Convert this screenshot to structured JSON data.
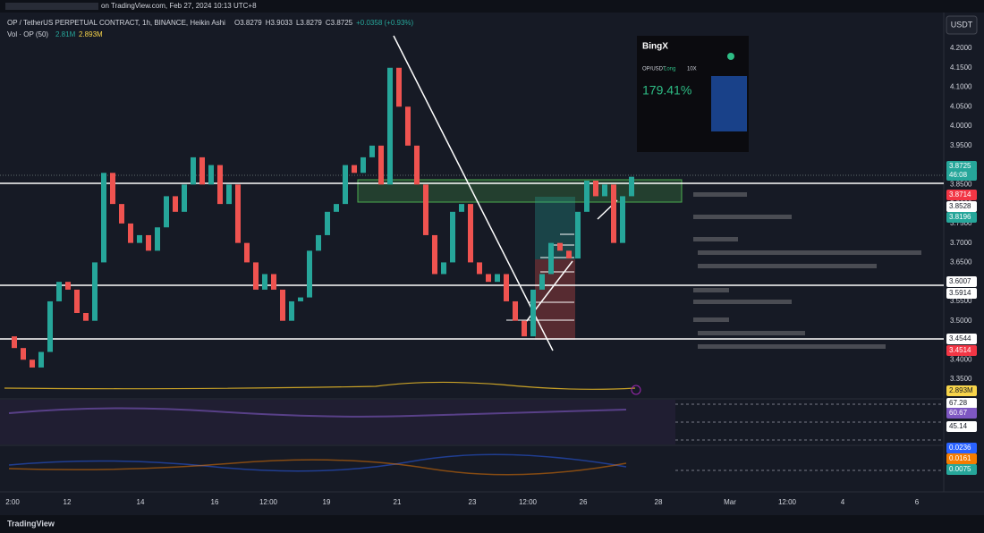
{
  "top_bar": {
    "source": "on TradingView.com, Feb 27, 2024 10:13 UTC+8",
    "currency": "USDT"
  },
  "legend": {
    "symbol": "OP / TetherUS PERPETUAL CONTRACT, 1h, BINANCE, Heikin Ashi",
    "ohlc": [
      "O3.8279",
      "H3.9033",
      "L3.8279",
      "C3.8725",
      "+0.0358 (+0.93%)"
    ],
    "volume_title": "Vol · OP (50)",
    "volume_values": [
      "2.81M",
      "2.893M"
    ]
  },
  "card": {
    "brand": "BingX",
    "pair": "OP/USDT",
    "side": "Long",
    "leverage": "10X",
    "pnl": "179.41%"
  },
  "chart": {
    "price_scale": [
      "4.2000",
      "4.1500",
      "4.1000",
      "4.0500",
      "4.0000",
      "3.9500",
      "3.9000",
      "3.8500",
      "3.8000",
      "3.7500",
      "3.7000",
      "3.6500",
      "3.6000",
      "3.5500",
      "3.5000",
      "3.4500",
      "3.4000",
      "3.3500"
    ],
    "time_scale": [
      "2:00",
      "12",
      "14",
      "16",
      "12:00",
      "19",
      "21",
      "23",
      "12:00",
      "26",
      "28",
      "Mar",
      "12:00",
      "4",
      "6"
    ],
    "closes": [
      3.46,
      3.43,
      3.4,
      3.38,
      3.42,
      3.55,
      3.6,
      3.58,
      3.52,
      3.5,
      3.65,
      3.88,
      3.8,
      3.75,
      3.7,
      3.72,
      3.68,
      3.74,
      3.82,
      3.78,
      3.85,
      3.92,
      3.85,
      3.9,
      3.8,
      3.85,
      3.7,
      3.65,
      3.58,
      3.62,
      3.58,
      3.5,
      3.55,
      3.56,
      3.68,
      3.72,
      3.78,
      3.8,
      3.9,
      3.88,
      3.92,
      3.95,
      3.85,
      4.15,
      4.05,
      3.95,
      3.85,
      3.72,
      3.62,
      3.65,
      3.78,
      3.8,
      3.65,
      3.62,
      3.6,
      3.62,
      3.55,
      3.5,
      3.46,
      3.58,
      3.62,
      3.7,
      3.68,
      3.66,
      3.78,
      3.86,
      3.82,
      3.85,
      3.7,
      3.82,
      3.87
    ],
    "up_color": "#26a69a",
    "down_color": "#ef5350",
    "tags": [
      {
        "label": "3.8725",
        "color": "#26a69a"
      },
      {
        "label": "46:08",
        "color": "#26a69a"
      },
      {
        "label": "3.8714",
        "color": "#f23645"
      },
      {
        "label": "3.8528",
        "color": "#ffffff"
      },
      {
        "label": "3.8196",
        "color": "#26a69a"
      },
      {
        "label": "3.6007",
        "color": "#ffffff"
      },
      {
        "label": "3.5914",
        "color": "#ffffff"
      },
      {
        "label": "3.4544",
        "color": "#ffffff"
      },
      {
        "label": "3.4514",
        "color": "#f23645"
      },
      {
        "label": "2.893M",
        "color": "#f7d44a"
      },
      {
        "label": "67.28",
        "color": "#ffffff"
      },
      {
        "label": "60.67",
        "color": "#7e57c2"
      },
      {
        "label": "45.14",
        "color": "#ffffff"
      },
      {
        "label": "0.0236",
        "color": "#2962ff"
      },
      {
        "label": "0.0161",
        "color": "#f57c00"
      },
      {
        "label": "0.0075",
        "color": "#26a69a"
      }
    ]
  },
  "footer": {
    "brand": "TradingView"
  }
}
